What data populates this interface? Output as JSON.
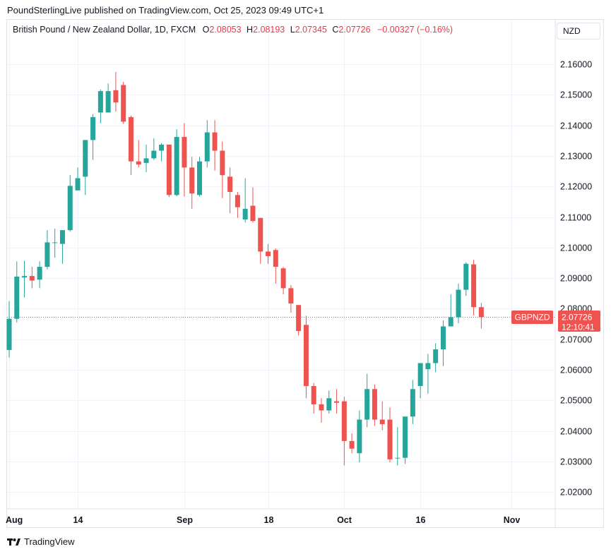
{
  "header": {
    "published": "PoundSterlingLive published on TradingView.com, Oct 25, 2023 09:49 UTC+1"
  },
  "legend": {
    "title": "British Pound / New Zealand Dollar, 1D, FXCM",
    "o_label": "O",
    "o_value": "2.08053",
    "h_label": "H",
    "h_value": "2.08193",
    "l_label": "L",
    "l_value": "2.07345",
    "c_label": "C",
    "c_value": "2.07726",
    "change": "−0.00327 (−0.16%)"
  },
  "currency_button": "NZD",
  "price_tag": {
    "symbol": "GBPNZD",
    "price": "2.07726",
    "countdown": "12:10:41"
  },
  "footer": {
    "brand": "TradingView"
  },
  "colors": {
    "up": "#26a69a",
    "down": "#ef5350",
    "grid": "#f0f3fa",
    "tag": "#ef5350"
  },
  "chart_data": {
    "type": "candlestick",
    "symbol": "GBPNZD",
    "ylim": [
      2.015,
      2.169
    ],
    "y_ticks": [
      "2.16000",
      "2.15000",
      "2.14000",
      "2.13000",
      "2.12000",
      "2.11000",
      "2.10000",
      "2.09000",
      "2.08000",
      "2.07000",
      "2.06000",
      "2.05000",
      "2.04000",
      "2.03000",
      "2.02000"
    ],
    "y_tick_values": [
      2.16,
      2.15,
      2.14,
      2.13,
      2.12,
      2.11,
      2.1,
      2.09,
      2.08,
      2.07,
      2.06,
      2.05,
      2.04,
      2.03,
      2.02
    ],
    "x_ticks": [
      {
        "label": "Aug",
        "index": 0
      },
      {
        "label": "14",
        "index": 9
      },
      {
        "label": "Sep",
        "index": 23
      },
      {
        "label": "18",
        "index": 34
      },
      {
        "label": "Oct",
        "index": 44
      },
      {
        "label": "16",
        "index": 54
      },
      {
        "label": "Nov",
        "index": 66
      }
    ],
    "last_price": 2.07726,
    "candles": [
      {
        "o": 2.0665,
        "h": 2.0825,
        "l": 2.064,
        "c": 2.0767
      },
      {
        "o": 2.0767,
        "h": 2.0955,
        "l": 2.0755,
        "c": 2.0905
      },
      {
        "o": 2.0902,
        "h": 2.0957,
        "l": 2.0837,
        "c": 2.0907
      },
      {
        "o": 2.0907,
        "h": 2.0937,
        "l": 2.0867,
        "c": 2.0892
      },
      {
        "o": 2.0895,
        "h": 2.0955,
        "l": 2.0867,
        "c": 2.0937
      },
      {
        "o": 2.0937,
        "h": 2.1057,
        "l": 2.0929,
        "c": 2.1017
      },
      {
        "o": 2.1017,
        "h": 2.1062,
        "l": 2.0967,
        "c": 2.1017
      },
      {
        "o": 2.1012,
        "h": 2.1057,
        "l": 2.0947,
        "c": 2.1057
      },
      {
        "o": 2.1057,
        "h": 2.1237,
        "l": 2.1052,
        "c": 2.1202
      },
      {
        "o": 2.1187,
        "h": 2.1262,
        "l": 2.1187,
        "c": 2.1227
      },
      {
        "o": 2.1232,
        "h": 2.1352,
        "l": 2.1172,
        "c": 2.1352
      },
      {
        "o": 2.1352,
        "h": 2.1437,
        "l": 2.1287,
        "c": 2.1427
      },
      {
        "o": 2.1442,
        "h": 2.1517,
        "l": 2.1407,
        "c": 2.1512
      },
      {
        "o": 2.1442,
        "h": 2.1537,
        "l": 2.1442,
        "c": 2.1512
      },
      {
        "o": 2.1515,
        "h": 2.1575,
        "l": 2.1445,
        "c": 2.1475
      },
      {
        "o": 2.1532,
        "h": 2.1542,
        "l": 2.1405,
        "c": 2.1412
      },
      {
        "o": 2.1427,
        "h": 2.1432,
        "l": 2.1237,
        "c": 2.1282
      },
      {
        "o": 2.1282,
        "h": 2.1352,
        "l": 2.1262,
        "c": 2.1272
      },
      {
        "o": 2.1277,
        "h": 2.1337,
        "l": 2.1247,
        "c": 2.1292
      },
      {
        "o": 2.1292,
        "h": 2.1357,
        "l": 2.1287,
        "c": 2.1317
      },
      {
        "o": 2.1317,
        "h": 2.1342,
        "l": 2.1282,
        "c": 2.1337
      },
      {
        "o": 2.1337,
        "h": 2.1337,
        "l": 2.1165,
        "c": 2.1172
      },
      {
        "o": 2.1172,
        "h": 2.1387,
        "l": 2.1168,
        "c": 2.1362
      },
      {
        "o": 2.1362,
        "h": 2.1407,
        "l": 2.1167,
        "c": 2.1262
      },
      {
        "o": 2.1262,
        "h": 2.1297,
        "l": 2.1127,
        "c": 2.1177
      },
      {
        "o": 2.1172,
        "h": 2.1297,
        "l": 2.1167,
        "c": 2.1282
      },
      {
        "o": 2.1282,
        "h": 2.1417,
        "l": 2.1262,
        "c": 2.1377
      },
      {
        "o": 2.1377,
        "h": 2.1417,
        "l": 2.1252,
        "c": 2.1317
      },
      {
        "o": 2.1317,
        "h": 2.1347,
        "l": 2.1162,
        "c": 2.1237
      },
      {
        "o": 2.1232,
        "h": 2.1262,
        "l": 2.1112,
        "c": 2.1182
      },
      {
        "o": 2.1172,
        "h": 2.1182,
        "l": 2.1097,
        "c": 2.1132
      },
      {
        "o": 2.1092,
        "h": 2.1227,
        "l": 2.1082,
        "c": 2.1127
      },
      {
        "o": 2.1137,
        "h": 2.1197,
        "l": 2.1082,
        "c": 2.1087
      },
      {
        "o": 2.1097,
        "h": 2.1097,
        "l": 2.0947,
        "c": 2.0987
      },
      {
        "o": 2.0987,
        "h": 2.1012,
        "l": 2.0947,
        "c": 2.0972
      },
      {
        "o": 2.0992,
        "h": 2.0997,
        "l": 2.0882,
        "c": 2.0937
      },
      {
        "o": 2.0932,
        "h": 2.0937,
        "l": 2.0847,
        "c": 2.0867
      },
      {
        "o": 2.0867,
        "h": 2.0877,
        "l": 2.0787,
        "c": 2.0817
      },
      {
        "o": 2.0812,
        "h": 2.0812,
        "l": 2.0712,
        "c": 2.0727
      },
      {
        "o": 2.0747,
        "h": 2.0777,
        "l": 2.0507,
        "c": 2.0547
      },
      {
        "o": 2.0547,
        "h": 2.0557,
        "l": 2.0457,
        "c": 2.0487
      },
      {
        "o": 2.0487,
        "h": 2.0507,
        "l": 2.0427,
        "c": 2.0467
      },
      {
        "o": 2.0467,
        "h": 2.0532,
        "l": 2.0457,
        "c": 2.0507
      },
      {
        "o": 2.0497,
        "h": 2.0537,
        "l": 2.0457,
        "c": 2.0492
      },
      {
        "o": 2.0497,
        "h": 2.0512,
        "l": 2.0287,
        "c": 2.0367
      },
      {
        "o": 2.0367,
        "h": 2.0392,
        "l": 2.0327,
        "c": 2.0342
      },
      {
        "o": 2.0327,
        "h": 2.0467,
        "l": 2.0297,
        "c": 2.0437
      },
      {
        "o": 2.0437,
        "h": 2.0587,
        "l": 2.0412,
        "c": 2.0537
      },
      {
        "o": 2.0537,
        "h": 2.0552,
        "l": 2.0417,
        "c": 2.0437
      },
      {
        "o": 2.0437,
        "h": 2.0497,
        "l": 2.0402,
        "c": 2.0422
      },
      {
        "o": 2.0437,
        "h": 2.0477,
        "l": 2.0297,
        "c": 2.0307
      },
      {
        "o": 2.0312,
        "h": 2.0412,
        "l": 2.0287,
        "c": 2.0312
      },
      {
        "o": 2.0312,
        "h": 2.0447,
        "l": 2.0292,
        "c": 2.0447
      },
      {
        "o": 2.0447,
        "h": 2.0567,
        "l": 2.0422,
        "c": 2.0537
      },
      {
        "o": 2.0547,
        "h": 2.0617,
        "l": 2.0507,
        "c": 2.0622
      },
      {
        "o": 2.0602,
        "h": 2.0652,
        "l": 2.0522,
        "c": 2.0622
      },
      {
        "o": 2.0622,
        "h": 2.0687,
        "l": 2.0592,
        "c": 2.0667
      },
      {
        "o": 2.0667,
        "h": 2.0762,
        "l": 2.0612,
        "c": 2.0742
      },
      {
        "o": 2.0742,
        "h": 2.0847,
        "l": 2.0742,
        "c": 2.0772
      },
      {
        "o": 2.0772,
        "h": 2.0882,
        "l": 2.0752,
        "c": 2.0862
      },
      {
        "o": 2.0862,
        "h": 2.0952,
        "l": 2.0842,
        "c": 2.0947
      },
      {
        "o": 2.0945,
        "h": 2.096,
        "l": 2.0778,
        "c": 2.0805
      },
      {
        "o": 2.0805,
        "h": 2.0819,
        "l": 2.0735,
        "c": 2.0773
      }
    ]
  }
}
